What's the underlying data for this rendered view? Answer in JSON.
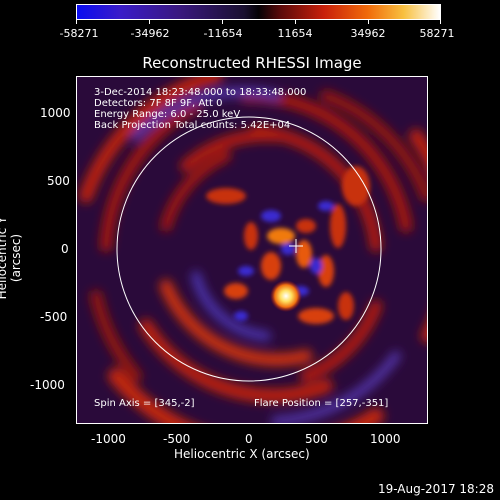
{
  "colorbar": {
    "labels": [
      "-58271",
      "-34962",
      "-11654",
      "11654",
      "34962",
      "58271"
    ],
    "colors": [
      "#0a0cf0",
      "#3a1880",
      "#050206",
      "#c8200a",
      "#f06a0a",
      "#ffffff"
    ]
  },
  "title": "Reconstructed RHESSI Image",
  "annotations": {
    "time_range": "3-Dec-2014 18:23:48.000 to 18:33:48.000",
    "detectors": "Detectors: 7F 8F 9F, Att 0",
    "energy_range": "Energy Range: 6.0 - 25.0 keV",
    "method_counts": "Back Projection    Total counts: 5.42E+04",
    "spin_axis": "Spin Axis = [345,-2]",
    "flare_position": "Flare Position = [257,-351]"
  },
  "axes": {
    "xlabel": "Heliocentric X (arcsec)",
    "ylabel": "Heliocentric Y (arcsec)",
    "x_ticks": [
      "-1000",
      "-500",
      "0",
      "500",
      "1000"
    ],
    "y_ticks": [
      "1000",
      "500",
      "0",
      "-500",
      "-1000"
    ]
  },
  "timestamp": "19-Aug-2017 18:28"
}
